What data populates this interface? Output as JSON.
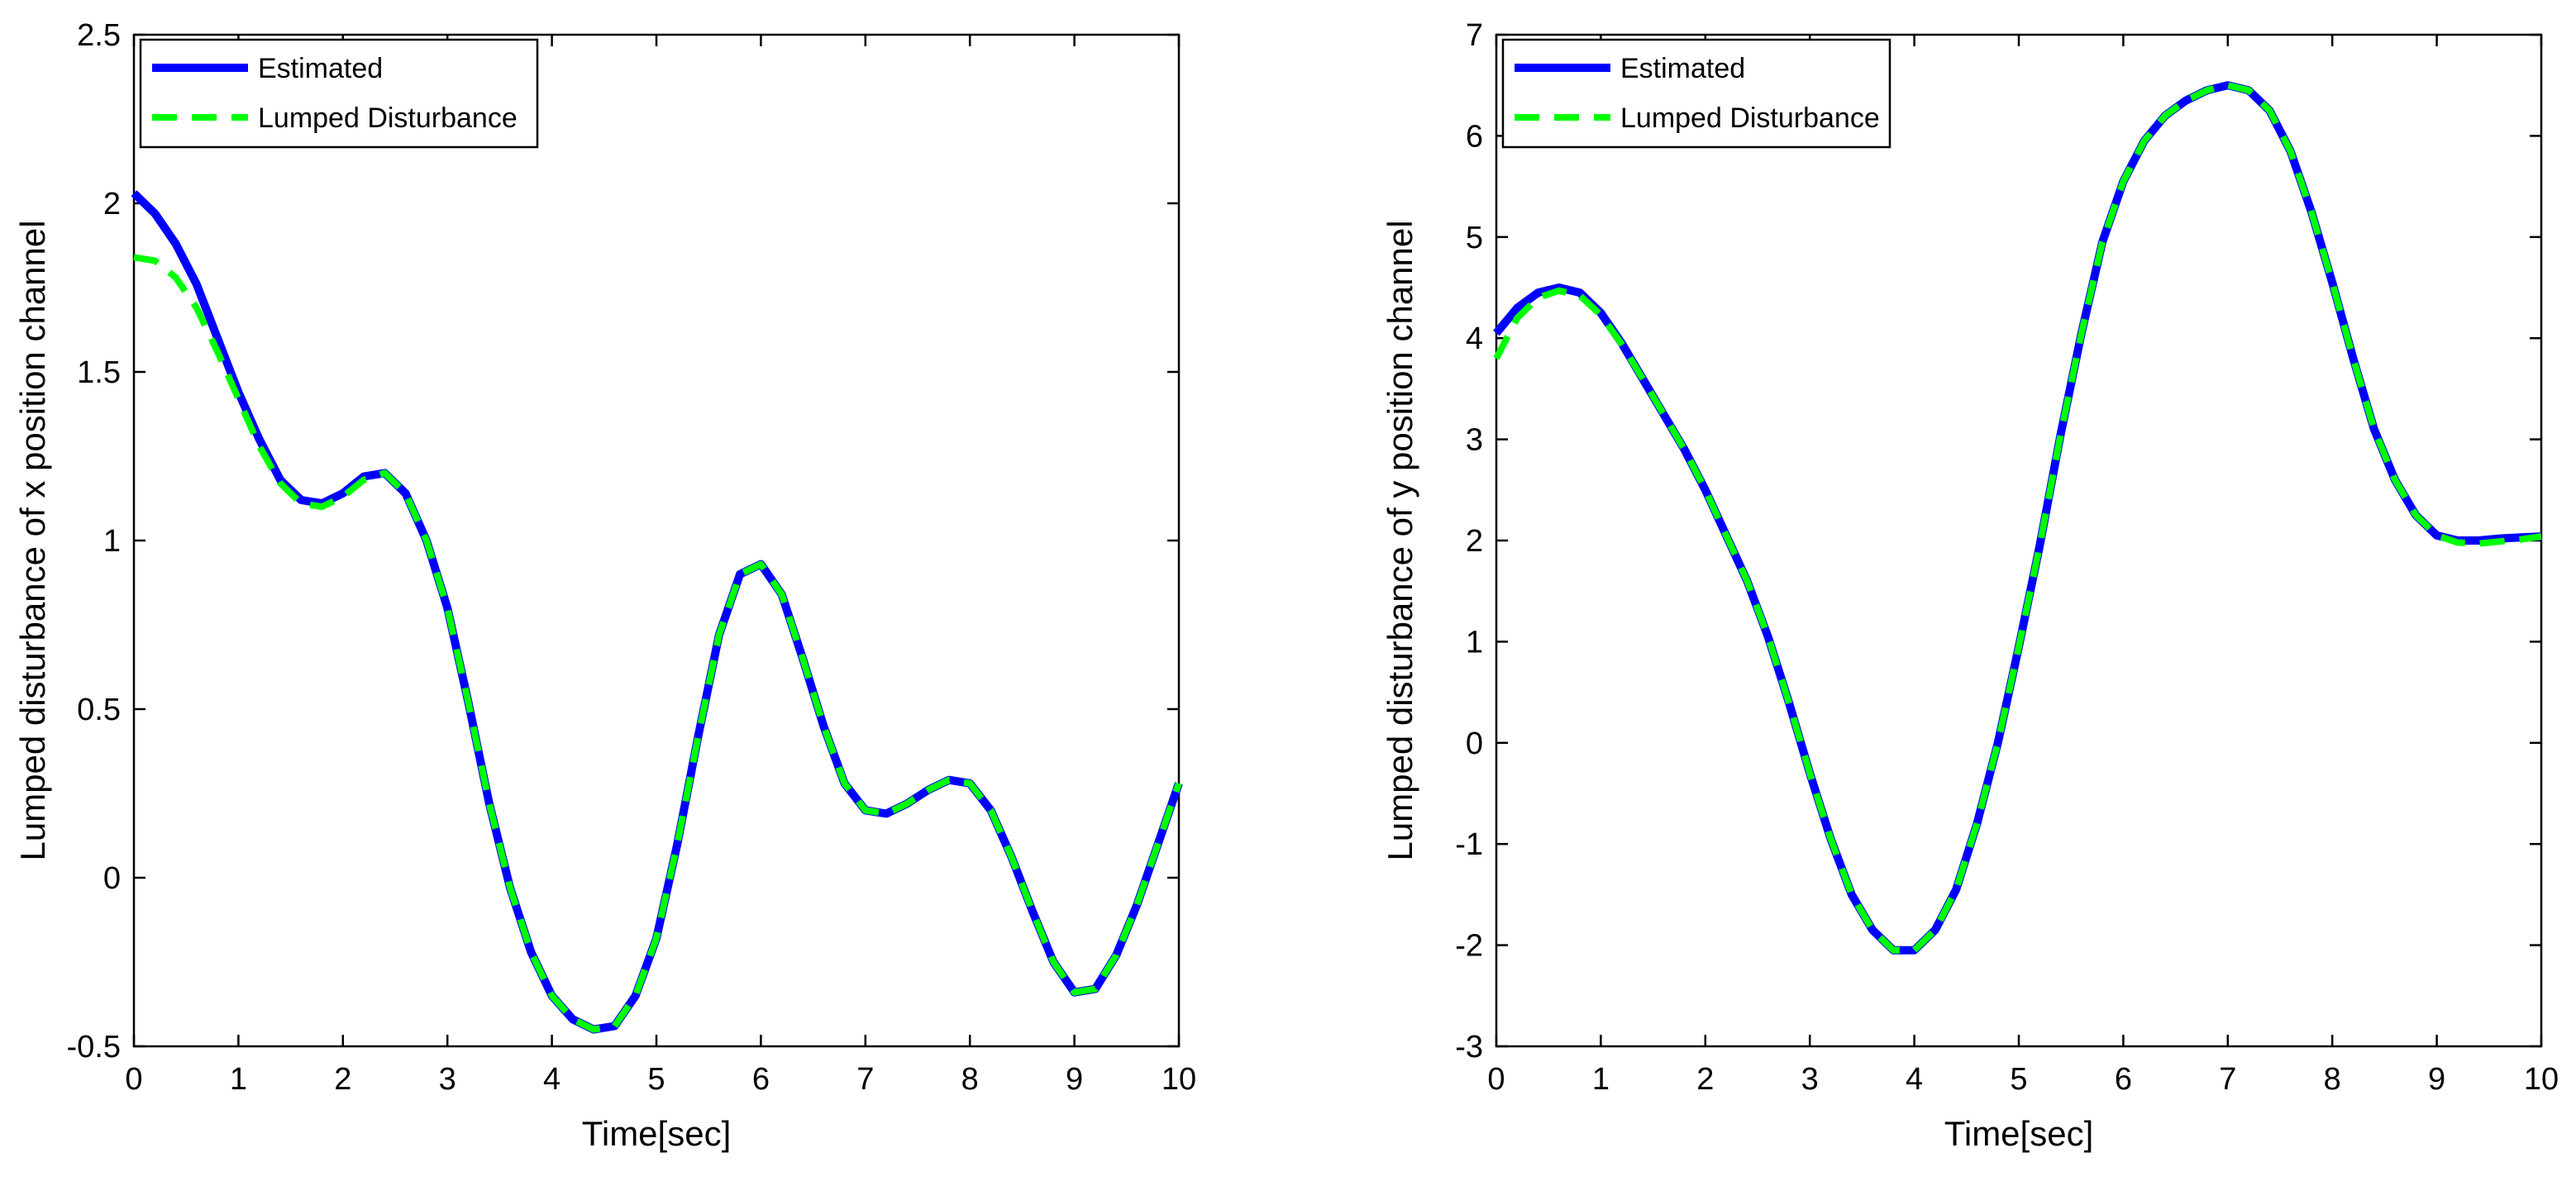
{
  "chart_data": [
    {
      "type": "line",
      "xlabel": "Time[sec]",
      "ylabel": "Lumped disturbance of x position channel",
      "xlim": [
        0,
        10
      ],
      "ylim": [
        -0.5,
        2.5
      ],
      "xticks": [
        "0",
        "1",
        "2",
        "3",
        "4",
        "5",
        "6",
        "7",
        "8",
        "9",
        "10"
      ],
      "yticks": [
        "-0.5",
        "0",
        "0.5",
        "1",
        "1.5",
        "2",
        "2.5"
      ],
      "legend_position": "top-left",
      "grid": false,
      "series": [
        {
          "name": "Estimated",
          "color": "#0000ff",
          "style": "solid",
          "x": [
            0,
            0.2,
            0.4,
            0.6,
            0.8,
            1.0,
            1.2,
            1.4,
            1.6,
            1.8,
            2.0,
            2.2,
            2.4,
            2.6,
            2.8,
            3.0,
            3.2,
            3.4,
            3.6,
            3.8,
            4.0,
            4.2,
            4.4,
            4.6,
            4.8,
            5.0,
            5.2,
            5.4,
            5.6,
            5.8,
            6.0,
            6.2,
            6.4,
            6.6,
            6.8,
            7.0,
            7.2,
            7.4,
            7.6,
            7.8,
            8.0,
            8.2,
            8.4,
            8.6,
            8.8,
            9.0,
            9.2,
            9.4,
            9.6,
            9.8,
            10.0
          ],
          "y": [
            2.03,
            1.97,
            1.88,
            1.76,
            1.6,
            1.44,
            1.3,
            1.18,
            1.12,
            1.11,
            1.14,
            1.19,
            1.2,
            1.14,
            1.0,
            0.8,
            0.52,
            0.22,
            -0.03,
            -0.22,
            -0.35,
            -0.42,
            -0.45,
            -0.44,
            -0.35,
            -0.18,
            0.1,
            0.42,
            0.72,
            0.9,
            0.93,
            0.84,
            0.65,
            0.45,
            0.28,
            0.2,
            0.19,
            0.22,
            0.26,
            0.29,
            0.28,
            0.2,
            0.06,
            -0.1,
            -0.25,
            -0.34,
            -0.33,
            -0.23,
            -0.08,
            0.1,
            0.28
          ]
        },
        {
          "name": "Lumped Disturbance",
          "color": "#00ff00",
          "style": "dashed",
          "x": [
            0,
            0.2,
            0.4,
            0.6,
            0.8,
            1.0,
            1.2,
            1.4,
            1.6,
            1.8,
            2.0,
            2.2,
            2.4,
            2.6,
            2.8,
            3.0,
            3.2,
            3.4,
            3.6,
            3.8,
            4.0,
            4.2,
            4.4,
            4.6,
            4.8,
            5.0,
            5.2,
            5.4,
            5.6,
            5.8,
            6.0,
            6.2,
            6.4,
            6.6,
            6.8,
            7.0,
            7.2,
            7.4,
            7.6,
            7.8,
            8.0,
            8.2,
            8.4,
            8.6,
            8.8,
            9.0,
            9.2,
            9.4,
            9.6,
            9.8,
            10.0
          ],
          "y": [
            1.84,
            1.83,
            1.78,
            1.69,
            1.56,
            1.42,
            1.28,
            1.17,
            1.11,
            1.1,
            1.13,
            1.18,
            1.2,
            1.14,
            1.0,
            0.8,
            0.52,
            0.22,
            -0.03,
            -0.22,
            -0.35,
            -0.42,
            -0.45,
            -0.44,
            -0.35,
            -0.18,
            0.1,
            0.42,
            0.72,
            0.9,
            0.93,
            0.84,
            0.65,
            0.45,
            0.28,
            0.2,
            0.19,
            0.22,
            0.26,
            0.29,
            0.28,
            0.2,
            0.06,
            -0.1,
            -0.25,
            -0.34,
            -0.33,
            -0.23,
            -0.08,
            0.1,
            0.28
          ]
        }
      ]
    },
    {
      "type": "line",
      "xlabel": "Time[sec]",
      "ylabel": "Lumped disturbance of y position channel",
      "xlim": [
        0,
        10
      ],
      "ylim": [
        -3,
        7
      ],
      "xticks": [
        "0",
        "1",
        "2",
        "3",
        "4",
        "5",
        "6",
        "7",
        "8",
        "9",
        "10"
      ],
      "yticks": [
        "-3",
        "-2",
        "-1",
        "0",
        "1",
        "2",
        "3",
        "4",
        "5",
        "6",
        "7"
      ],
      "legend_position": "top-left",
      "grid": false,
      "series": [
        {
          "name": "Estimated",
          "color": "#0000ff",
          "style": "solid",
          "x": [
            0,
            0.2,
            0.4,
            0.6,
            0.8,
            1.0,
            1.2,
            1.4,
            1.6,
            1.8,
            2.0,
            2.2,
            2.4,
            2.6,
            2.8,
            3.0,
            3.2,
            3.4,
            3.6,
            3.8,
            4.0,
            4.2,
            4.4,
            4.6,
            4.8,
            5.0,
            5.2,
            5.4,
            5.6,
            5.8,
            6.0,
            6.2,
            6.4,
            6.6,
            6.8,
            7.0,
            7.2,
            7.4,
            7.6,
            7.8,
            8.0,
            8.2,
            8.4,
            8.6,
            8.8,
            9.0,
            9.2,
            9.4,
            9.6,
            9.8,
            10.0
          ],
          "y": [
            4.05,
            4.3,
            4.45,
            4.5,
            4.45,
            4.25,
            3.95,
            3.6,
            3.25,
            2.9,
            2.5,
            2.05,
            1.6,
            1.05,
            0.4,
            -0.3,
            -0.95,
            -1.5,
            -1.85,
            -2.05,
            -2.05,
            -1.85,
            -1.45,
            -0.8,
            0.0,
            0.95,
            1.95,
            3.05,
            4.05,
            4.95,
            5.55,
            5.95,
            6.2,
            6.35,
            6.45,
            6.5,
            6.45,
            6.25,
            5.85,
            5.25,
            4.55,
            3.8,
            3.1,
            2.6,
            2.25,
            2.05,
            2.0,
            2.0,
            2.02,
            2.03,
            2.04
          ]
        },
        {
          "name": "Lumped Disturbance",
          "color": "#00ff00",
          "style": "dashed",
          "x": [
            0,
            0.2,
            0.4,
            0.6,
            0.8,
            1.0,
            1.2,
            1.4,
            1.6,
            1.8,
            2.0,
            2.2,
            2.4,
            2.6,
            2.8,
            3.0,
            3.2,
            3.4,
            3.6,
            3.8,
            4.0,
            4.2,
            4.4,
            4.6,
            4.8,
            5.0,
            5.2,
            5.4,
            5.6,
            5.8,
            6.0,
            6.2,
            6.4,
            6.6,
            6.8,
            7.0,
            7.2,
            7.4,
            7.6,
            7.8,
            8.0,
            8.2,
            8.4,
            8.6,
            8.8,
            9.0,
            9.2,
            9.4,
            9.6,
            9.8,
            10.0
          ],
          "y": [
            3.8,
            4.2,
            4.4,
            4.47,
            4.42,
            4.23,
            3.94,
            3.6,
            3.25,
            2.9,
            2.5,
            2.05,
            1.6,
            1.05,
            0.4,
            -0.3,
            -0.95,
            -1.5,
            -1.85,
            -2.05,
            -2.05,
            -1.85,
            -1.45,
            -0.8,
            0.0,
            0.95,
            1.95,
            3.05,
            4.05,
            4.95,
            5.55,
            5.95,
            6.2,
            6.35,
            6.45,
            6.5,
            6.45,
            6.25,
            5.85,
            5.25,
            4.55,
            3.8,
            3.1,
            2.6,
            2.25,
            2.05,
            1.98,
            1.97,
            1.99,
            2.01,
            2.04
          ]
        }
      ]
    }
  ]
}
